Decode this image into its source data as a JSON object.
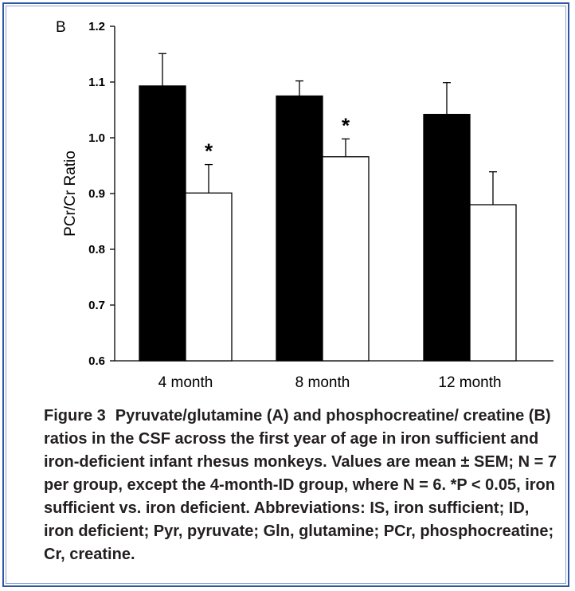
{
  "panel_letter": "B",
  "chart_data": {
    "type": "bar",
    "categories": [
      "4 month",
      "8 month",
      "12 month"
    ],
    "series": [
      {
        "values": [
          1.093,
          1.075,
          1.042
        ],
        "errors": [
          0.058,
          0.027,
          0.057
        ],
        "color": "#000000"
      },
      {
        "values": [
          0.901,
          0.966,
          0.88
        ],
        "errors": [
          0.051,
          0.032,
          0.059
        ],
        "color": "#ffffff"
      }
    ],
    "significance": [
      "*",
      "*",
      ""
    ],
    "ylabel": "PCr/Cr Ratio",
    "xlabel": "",
    "ylim": [
      0.6,
      1.2
    ],
    "yticks": [
      "0.6",
      "0.7",
      "0.8",
      "0.9",
      "1.0",
      "1.1",
      "1.2"
    ],
    "grid": false
  },
  "caption": {
    "label": "Figure 3",
    "text": "Pyruvate/glutamine (A) and phosphocreatine/ creatine (B) ratios in the CSF across the first year of age in iron sufficient and iron-deficient infant rhesus monkeys. Values are mean ± SEM; N = 7 per group, except the 4-month-ID group, where N = 6. *P < 0.05, iron sufficient vs. iron deficient. Abbreviations: IS, iron sufficient; ID, iron deficient; Pyr, pyruvate; Gln, glutamine; PCr, phosphocreatine; Cr, creatine."
  },
  "colors": {
    "frame_border": "#2f55a4",
    "frame_inner": "#8aa4d6",
    "text": "#231f20"
  }
}
